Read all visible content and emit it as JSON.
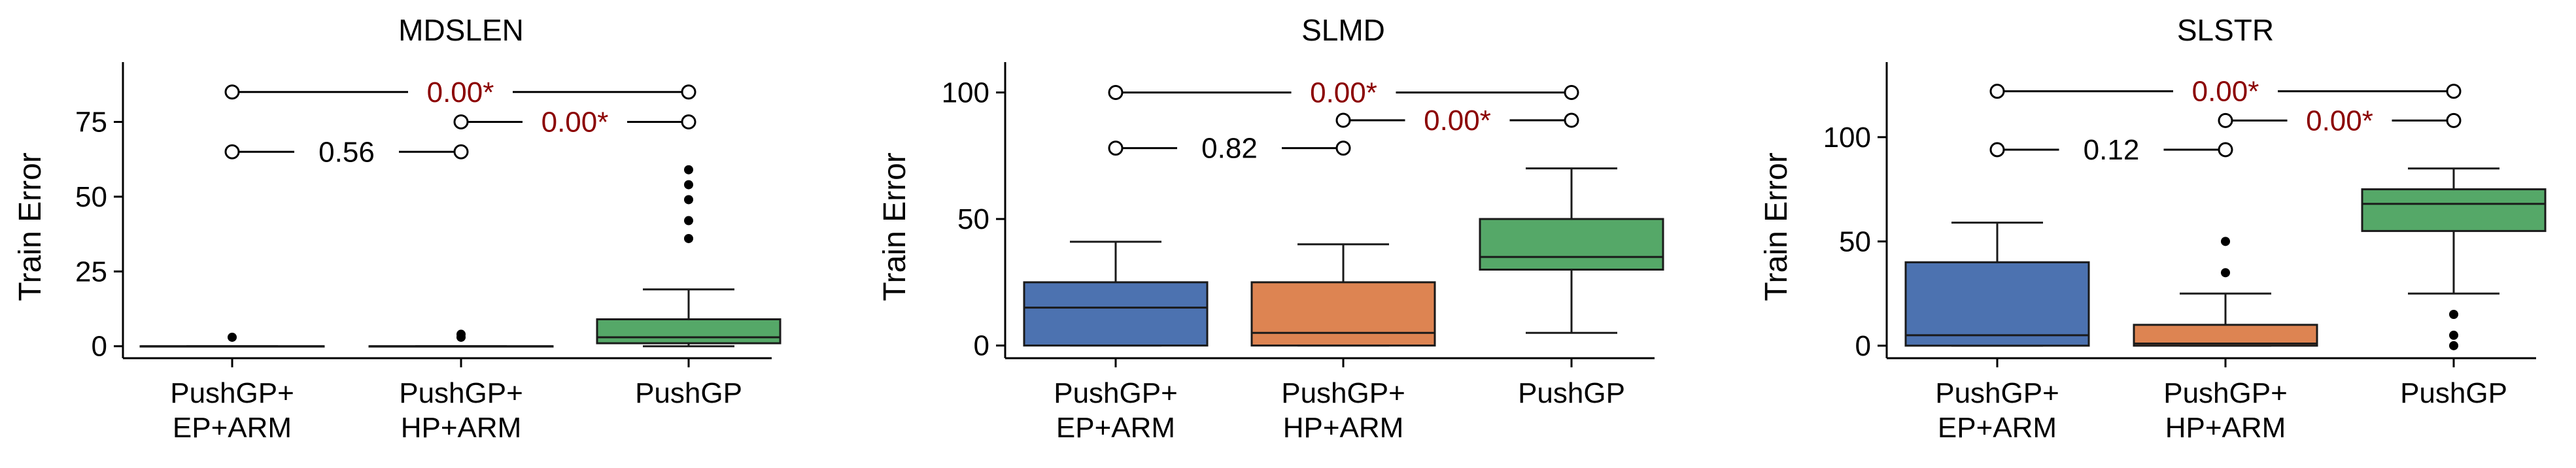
{
  "colors": {
    "group1": "#4c72b0",
    "group2": "#dd8452",
    "group3": "#55a868",
    "sig": "#8b0000",
    "nonsig": "#000000"
  },
  "chart_data": [
    {
      "type": "box",
      "title": "MDSLEN",
      "ylabel": "Train Error",
      "ylim": [
        -4,
        95
      ],
      "yticks": [
        0,
        25,
        50,
        75
      ],
      "categories": [
        "PushGP+\nEP+ARM",
        "PushGP+\nHP+ARM",
        "PushGP"
      ],
      "boxes": [
        {
          "whisker_low": 0,
          "q1": 0,
          "median": 0,
          "q3": 0,
          "whisker_high": 0,
          "outliers": [
            3
          ]
        },
        {
          "whisker_low": 0,
          "q1": 0,
          "median": 0,
          "q3": 0,
          "whisker_high": 0,
          "outliers": [
            3,
            4
          ]
        },
        {
          "whisker_low": 0,
          "q1": 1,
          "median": 3,
          "q3": 9,
          "whisker_high": 19,
          "outliers": [
            36,
            42,
            49,
            54,
            59
          ]
        }
      ],
      "annotations": [
        {
          "from": 0,
          "to": 2,
          "y": 85,
          "label": "0.00*",
          "significant": true
        },
        {
          "from": 0,
          "to": 1,
          "y": 65,
          "label": "0.56",
          "significant": false
        },
        {
          "from": 1,
          "to": 2,
          "y": 75,
          "label": "0.00*",
          "significant": true
        }
      ]
    },
    {
      "type": "box",
      "title": "SLMD",
      "ylabel": "Train Error",
      "ylim": [
        -5,
        112
      ],
      "yticks": [
        0,
        50,
        100
      ],
      "categories": [
        "PushGP+\nEP+ARM",
        "PushGP+\nHP+ARM",
        "PushGP"
      ],
      "boxes": [
        {
          "whisker_low": 0,
          "q1": 0,
          "median": 15,
          "q3": 25,
          "whisker_high": 41,
          "outliers": []
        },
        {
          "whisker_low": 0,
          "q1": 0,
          "median": 5,
          "q3": 25,
          "whisker_high": 40,
          "outliers": []
        },
        {
          "whisker_low": 5,
          "q1": 30,
          "median": 35,
          "q3": 50,
          "whisker_high": 70,
          "outliers": []
        }
      ],
      "annotations": [
        {
          "from": 0,
          "to": 2,
          "y": 100,
          "label": "0.00*",
          "significant": true
        },
        {
          "from": 0,
          "to": 1,
          "y": 78,
          "label": "0.82",
          "significant": false
        },
        {
          "from": 1,
          "to": 2,
          "y": 89,
          "label": "0.00*",
          "significant": true
        }
      ]
    },
    {
      "type": "box",
      "title": "SLSTR",
      "ylabel": "Train Error",
      "ylim": [
        -6,
        136
      ],
      "yticks": [
        0,
        50,
        100
      ],
      "categories": [
        "PushGP+\nEP+ARM",
        "PushGP+\nHP+ARM",
        "PushGP"
      ],
      "boxes": [
        {
          "whisker_low": 0,
          "q1": 0,
          "median": 5,
          "q3": 40,
          "whisker_high": 59,
          "outliers": []
        },
        {
          "whisker_low": 0,
          "q1": 0,
          "median": 1,
          "q3": 10,
          "whisker_high": 25,
          "outliers": [
            35,
            50
          ]
        },
        {
          "whisker_low": 25,
          "q1": 55,
          "median": 68,
          "q3": 75,
          "whisker_high": 85,
          "outliers": [
            0,
            5,
            15
          ]
        }
      ],
      "annotations": [
        {
          "from": 0,
          "to": 2,
          "y": 122,
          "label": "0.00*",
          "significant": true
        },
        {
          "from": 0,
          "to": 1,
          "y": 94,
          "label": "0.12",
          "significant": false
        },
        {
          "from": 1,
          "to": 2,
          "y": 108,
          "label": "0.00*",
          "significant": true
        }
      ]
    }
  ]
}
